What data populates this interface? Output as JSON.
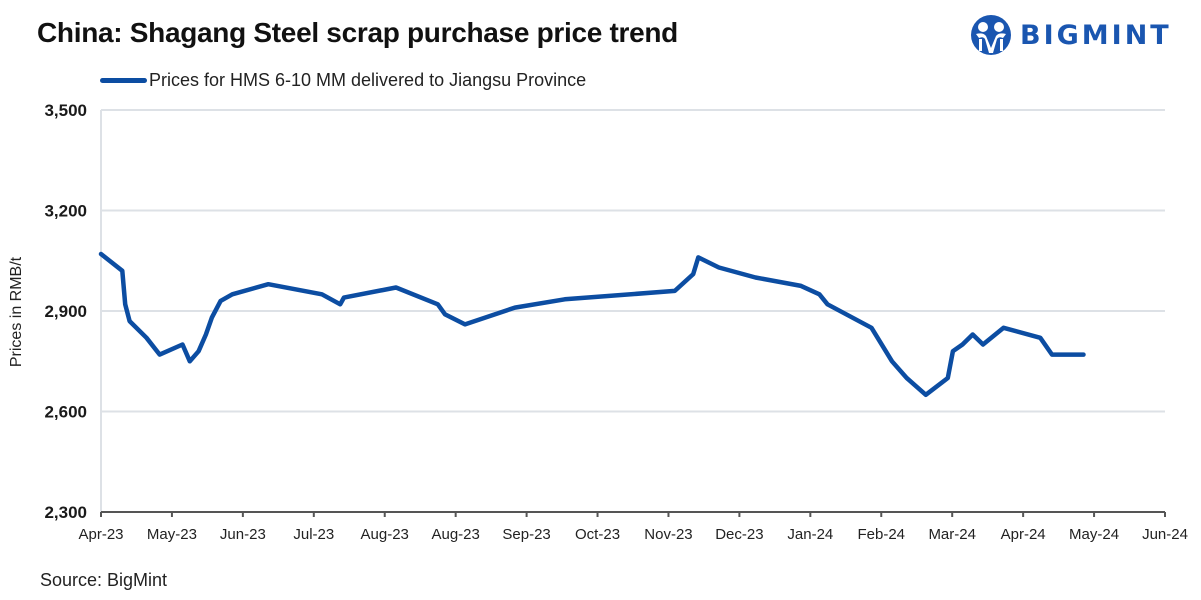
{
  "header": {
    "title": "China: Shagang Steel scrap purchase price trend",
    "logo_text": "BIGMINT",
    "logo_icon": "bigmint-people-icon"
  },
  "legend": {
    "label": "Prices for HMS 6-10 MM delivered to Jiangsu Province"
  },
  "footer": {
    "source": "Source: BigMint"
  },
  "colors": {
    "line": "#0c4da2",
    "brand": "#1a56b0",
    "grid": "#dde1e6",
    "axis": "#555555"
  },
  "chart_data": {
    "type": "line",
    "title": "China: Shagang Steel scrap purchase price trend",
    "xlabel": "",
    "ylabel": "Prices in RMB/t",
    "ylim": [
      2300,
      3500
    ],
    "yticks": [
      2300,
      2600,
      2900,
      3200,
      3500
    ],
    "ytick_labels": [
      "2,300",
      "2,600",
      "2,900",
      "3,200",
      "3,500"
    ],
    "xlim": [
      0,
      14.5
    ],
    "xtick_labels": [
      "Apr-23",
      "May-23",
      "Jun-23",
      "Jul-23",
      "Aug-23",
      "Aug-23",
      "Sep-23",
      "Oct-23",
      "Nov-23",
      "Dec-23",
      "Jan-24",
      "Feb-24",
      "Mar-24",
      "Apr-24",
      "May-24",
      "Jun-24"
    ],
    "grid": true,
    "legend_position": "top-left",
    "series": [
      {
        "name": "Prices for HMS 6-10 MM delivered to Jiangsu Province",
        "x": [
          0.0,
          0.29,
          0.33,
          0.39,
          0.62,
          0.8,
          1.11,
          1.21,
          1.33,
          1.43,
          1.51,
          1.63,
          1.79,
          2.28,
          3.01,
          3.26,
          3.31,
          4.02,
          4.59,
          4.69,
          4.96,
          5.64,
          6.32,
          7.82,
          8.07,
          8.14,
          8.42,
          8.92,
          9.54,
          9.79,
          9.9,
          10.5,
          10.78,
          10.98,
          11.24,
          11.54,
          11.61,
          11.74,
          11.88,
          12.02,
          12.3,
          12.8,
          12.96,
          13.02,
          13.32,
          13.39
        ],
        "values": [
          3070,
          3020,
          2920,
          2870,
          2820,
          2770,
          2800,
          2750,
          2780,
          2830,
          2880,
          2930,
          2950,
          2980,
          2950,
          2920,
          2940,
          2970,
          2920,
          2890,
          2860,
          2910,
          2935,
          2960,
          3010,
          3060,
          3030,
          3000,
          2975,
          2950,
          2920,
          2850,
          2750,
          2700,
          2650,
          2700,
          2780,
          2800,
          2830,
          2800,
          2850,
          2820,
          2770,
          2770,
          2770,
          2770
        ]
      }
    ]
  }
}
